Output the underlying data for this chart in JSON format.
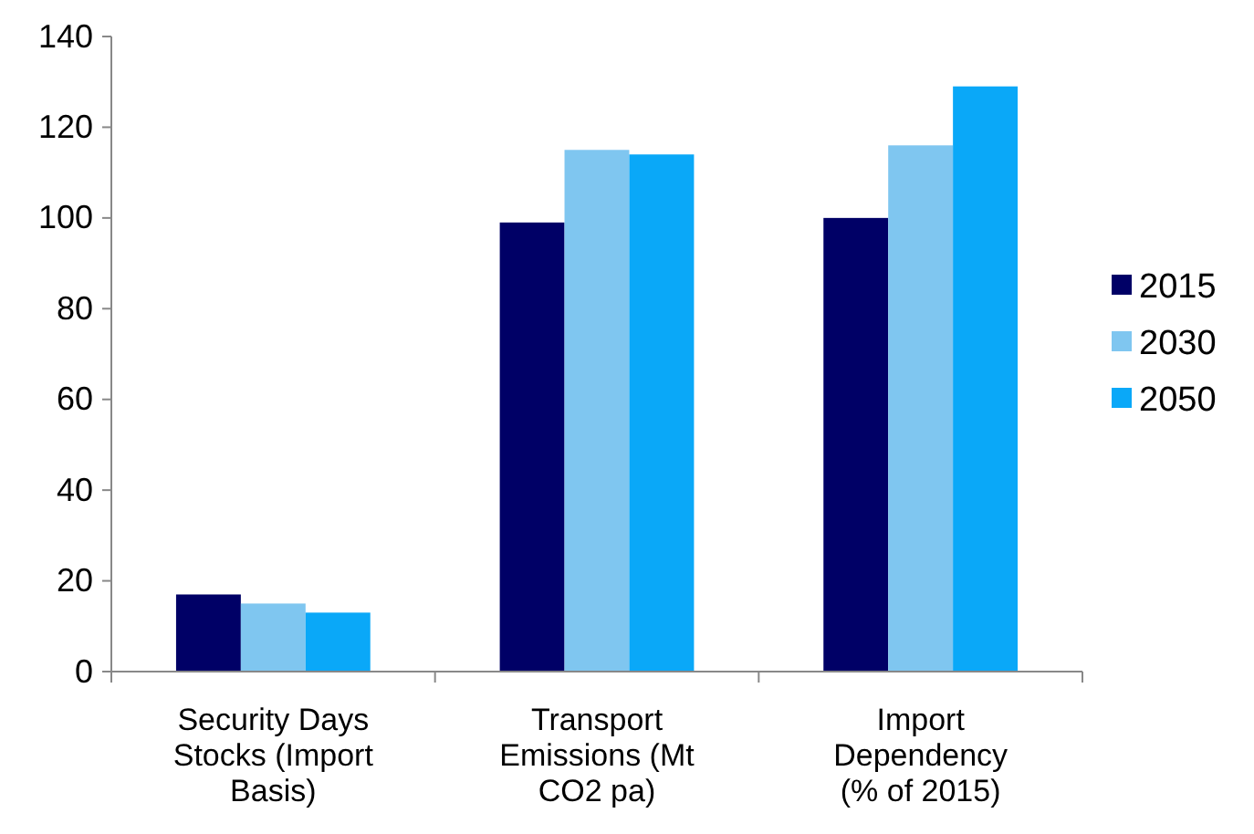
{
  "chart_data": {
    "type": "bar",
    "categories": [
      "Security Days Stocks (Import Basis)",
      "Transport Emissions (Mt CO2 pa)",
      "Import Dependency (% of 2015)"
    ],
    "series": [
      {
        "name": "2015",
        "color": "#000066",
        "values": [
          17,
          99,
          100
        ]
      },
      {
        "name": "2030",
        "color": "#7fc6f0",
        "values": [
          15,
          115,
          116
        ]
      },
      {
        "name": "2050",
        "color": "#0aa8f8",
        "values": [
          13,
          114,
          129
        ]
      }
    ],
    "ylim": [
      0,
      140
    ],
    "yticks": [
      0,
      20,
      40,
      60,
      80,
      100,
      120,
      140
    ],
    "grid": false,
    "legend": "right"
  }
}
